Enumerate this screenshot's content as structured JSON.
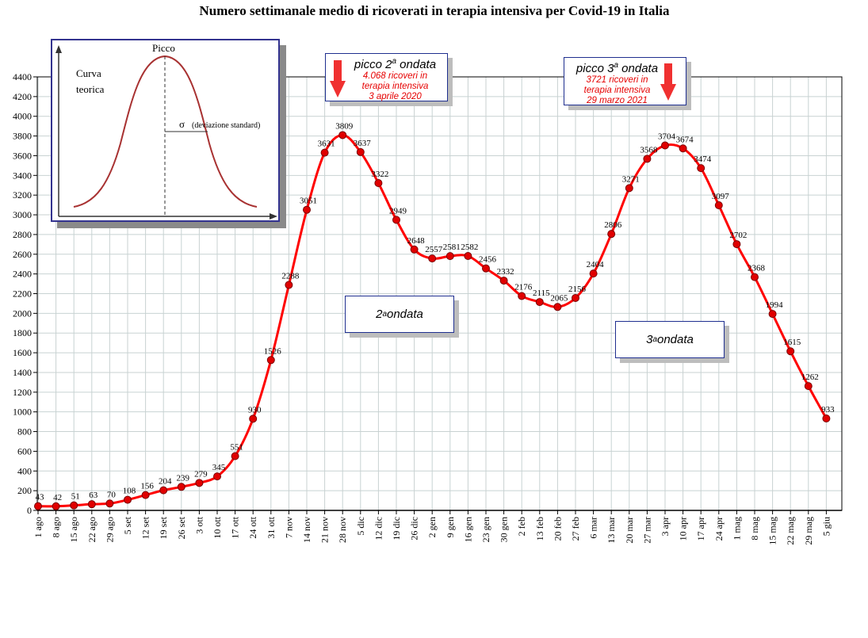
{
  "chart_data": {
    "type": "line",
    "title": "Numero settimanale medio di ricoverati in terapia intensiva per Covid-19 in Italia",
    "categories": [
      "1 ago",
      "8 ago",
      "15 ago",
      "22 ago",
      "29 ago",
      "5 set",
      "12 set",
      "19 set",
      "26 set",
      "3 ott",
      "10 ott",
      "17 ott",
      "24 ott",
      "31 ott",
      "7 nov",
      "14 nov",
      "21 nov",
      "28 nov",
      "5 dic",
      "12 dic",
      "19 dic",
      "26 dic",
      "2 gen",
      "9 gen",
      "16 gen",
      "23 gen",
      "30 gen",
      "2 feb",
      "13 feb",
      "20 feb",
      "27 feb",
      "6 mar",
      "13 mar",
      "20 mar",
      "27 mar",
      "3 apr",
      "10 apr",
      "17 apr",
      "24 apr",
      "1 mag",
      "8 mag",
      "15 mag",
      "22 mag",
      "29 mag",
      "5 giu"
    ],
    "series": [
      {
        "values": [
          43,
          42,
          51,
          63,
          70,
          108,
          156,
          204,
          239,
          279,
          345,
          551,
          930,
          1526,
          2288,
          3051,
          3631,
          3809,
          3637,
          3322,
          2949,
          2648,
          2557,
          2581,
          2582,
          2456,
          2332,
          2176,
          2115,
          2065,
          2156,
          2404,
          2806,
          3271,
          3568,
          3704,
          3674,
          3474,
          3097,
          2702,
          2368,
          1994,
          1615,
          1262,
          933
        ],
        "labels": [
          "43",
          "42",
          "51",
          "63",
          "70",
          "108",
          "156",
          "204",
          "239",
          "279",
          "345",
          "551",
          "930",
          "1526",
          "2288",
          "3051",
          "3631",
          "3809",
          "3637",
          "3322",
          "2949",
          "2648",
          "2557",
          "2581",
          "2582",
          "2456",
          "2332",
          "2176",
          "2115",
          "2065",
          "2156",
          "2404",
          "2806",
          "3271",
          "3568",
          "3704",
          "3674",
          "3474",
          "3097",
          "2702",
          "2368",
          "1994",
          "1615",
          "1262",
          "933"
        ]
      }
    ],
    "ylim": [
      0,
      4400
    ],
    "yticks": [
      "0",
      "200",
      "400",
      "600",
      "800",
      "1000",
      "1200",
      "1400",
      "1600",
      "1800",
      "2000",
      "2200",
      "2400",
      "2600",
      "2800",
      "3000",
      "3200",
      "3400",
      "3600",
      "3800",
      "4000",
      "4200",
      "4400"
    ],
    "grid": true,
    "line_color": "#ff0000",
    "marker_color": "#e00000"
  },
  "annotations": {
    "peak2": {
      "title": "picco 2",
      "sup": "a",
      "title_end": " ondata",
      "line1": "4.068 ricoveri in",
      "line2": "terapia intensiva",
      "line3": "3 aprile 2020"
    },
    "peak3": {
      "title": "picco 3",
      "sup": "a",
      "title_end": " ondata",
      "line1": "3721 ricoveri in",
      "line2": "terapia intensiva",
      "line3": "29 marzo 2021"
    },
    "wave2": {
      "num": "2",
      "sup": "a",
      "text": " ondata"
    },
    "wave3": {
      "num": "3",
      "sup": "a",
      "text": " ondata"
    }
  },
  "inset": {
    "peak_label": "Picco",
    "curve_label_1": "Curva",
    "curve_label_2": "teorica",
    "sigma": "σ",
    "sigma_text": "(deviazione standard)"
  },
  "colors": {
    "accent_red": "#e60000",
    "box_border": "#1f2f8f",
    "grid": "#c8d2d2"
  }
}
